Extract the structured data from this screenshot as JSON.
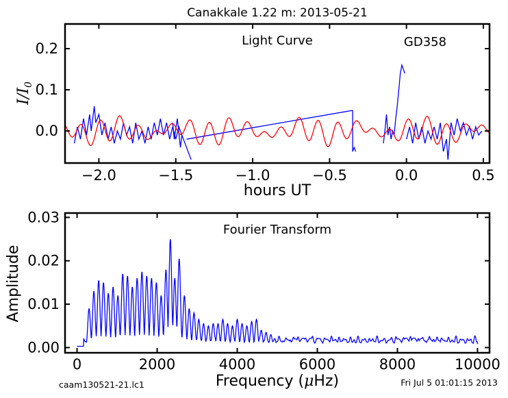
{
  "figure": {
    "title": "Canakkale 1.22 m:  2013-05-21",
    "footer_left": "caam130521-21.lc1",
    "footer_right": "Fri Jul  5 01:01:15 2013"
  },
  "chart_data": [
    {
      "type": "line",
      "panel": "light-curve",
      "annotation": "Light Curve",
      "star_label": "GD358",
      "xlabel": "hours UT",
      "ylabel_parts": {
        "a": "I",
        "slash": "/",
        "b": "I",
        "sub": "0"
      },
      "xlim": [
        -2.22,
        0.54
      ],
      "ylim": [
        -0.078,
        0.26
      ],
      "x_ticks": [
        -2.0,
        -1.5,
        -1.0,
        -0.5,
        0.0,
        0.5
      ],
      "x_tick_labels": [
        "−2.0",
        "−1.5",
        "−1.0",
        "−0.5",
        "0.0",
        "0.5"
      ],
      "y_ticks": [
        0.0,
        0.1,
        0.2
      ],
      "y_tick_labels": [
        "0.0",
        "0.1",
        "0.2"
      ],
      "grid": false,
      "colors": {
        "data": "#0000ff",
        "model": "#ff0000"
      },
      "series": [
        {
          "role": "observed photometry",
          "segments": [
            [
              [
                -2.16,
                -0.03
              ],
              [
                -2.14,
                0.01
              ],
              [
                -2.12,
                -0.02
              ],
              [
                -2.1,
                0.03
              ],
              [
                -2.08,
                -0.01
              ],
              [
                -2.06,
                0.04
              ],
              [
                -2.05,
                0.0
              ],
              [
                -2.03,
                0.06
              ],
              [
                -2.02,
                0.02
              ],
              [
                -2.0,
                0.04
              ],
              [
                -1.98,
                -0.01
              ],
              [
                -1.96,
                0.02
              ],
              [
                -1.94,
                -0.02
              ],
              [
                -1.92,
                0.01
              ],
              [
                -1.9,
                -0.03
              ],
              [
                -1.88,
                0.0
              ],
              [
                -1.86,
                -0.02
              ],
              [
                -1.84,
                0.02
              ],
              [
                -1.82,
                -0.01
              ],
              [
                -1.8,
                0.01
              ],
              [
                -1.78,
                -0.03
              ],
              [
                -1.76,
                0.02
              ],
              [
                -1.74,
                -0.02
              ],
              [
                -1.72,
                0.0
              ],
              [
                -1.7,
                -0.03
              ],
              [
                -1.68,
                0.01
              ],
              [
                -1.66,
                -0.02
              ],
              [
                -1.64,
                0.02
              ],
              [
                -1.62,
                -0.01
              ],
              [
                -1.6,
                0.03
              ],
              [
                -1.58,
                -0.01
              ],
              [
                -1.56,
                0.02
              ],
              [
                -1.54,
                -0.02
              ],
              [
                -1.52,
                0.01
              ],
              [
                -1.5,
                -0.02
              ],
              [
                -1.48,
                0.01
              ],
              [
                -1.46,
                -0.01
              ],
              [
                -1.44,
                -0.03
              ],
              [
                -1.42,
                -0.05
              ],
              [
                -1.4,
                -0.07
              ]
            ],
            [
              [
                -1.52,
                0.02
              ],
              [
                -1.51,
                -0.02
              ],
              [
                -1.49,
                0.03
              ],
              [
                -1.47,
                -0.04
              ],
              [
                -1.46,
                -0.01
              ]
            ],
            [
              [
                -0.35,
                0.05
              ],
              [
                -0.35,
                -0.05
              ],
              [
                -0.34,
                -0.04
              ],
              [
                -0.33,
                -0.05
              ]
            ],
            [
              [
                -0.15,
                -0.03
              ],
              [
                -0.14,
                0.0
              ],
              [
                -0.13,
                0.04
              ],
              [
                -0.12,
                -0.01
              ],
              [
                -0.11,
                0.01
              ],
              [
                -0.1,
                -0.02
              ],
              [
                -0.09,
                0.0
              ],
              [
                -0.08,
                -0.01
              ],
              [
                -0.07,
                0.03
              ],
              [
                -0.06,
                0.06
              ],
              [
                -0.05,
                0.1
              ],
              [
                -0.04,
                0.14
              ],
              [
                -0.03,
                0.16
              ],
              [
                -0.02,
                0.15
              ],
              [
                -0.01,
                0.14
              ]
            ],
            [
              [
                0.0,
                -0.02
              ],
              [
                0.02,
                0.01
              ],
              [
                0.04,
                -0.03
              ],
              [
                0.06,
                0.02
              ],
              [
                0.08,
                -0.02
              ],
              [
                0.1,
                0.01
              ],
              [
                0.12,
                -0.03
              ],
              [
                0.14,
                0.0
              ],
              [
                0.16,
                -0.02
              ],
              [
                0.18,
                0.01
              ],
              [
                0.2,
                -0.02
              ],
              [
                0.22,
                0.02
              ],
              [
                0.24,
                -0.05
              ],
              [
                0.26,
                -0.02
              ],
              [
                0.27,
                -0.07
              ],
              [
                0.29,
                0.02
              ],
              [
                0.31,
                -0.01
              ],
              [
                0.33,
                0.03
              ],
              [
                0.35,
                0.0
              ],
              [
                0.37,
                0.02
              ],
              [
                0.39,
                -0.01
              ],
              [
                0.41,
                0.01
              ],
              [
                0.43,
                -0.02
              ],
              [
                0.45,
                0.01
              ],
              [
                0.47,
                -0.01
              ],
              [
                0.49,
                0.0
              ]
            ]
          ],
          "connector": [
            [
              -1.43,
              -0.02
            ],
            [
              -0.35,
              0.05
            ]
          ]
        },
        {
          "role": "fitted model",
          "x_range": [
            -2.22,
            0.54
          ]
        }
      ]
    },
    {
      "type": "line",
      "panel": "fourier-transform",
      "annotation": "Fourier Transform",
      "xlabel_parts": {
        "pre": "Frequency (",
        "mu": "μ",
        "post": "Hz)"
      },
      "ylabel": "Amplitude",
      "xlim": [
        -300,
        10300
      ],
      "ylim": [
        -0.0012,
        0.031
      ],
      "x_ticks": [
        0,
        2000,
        4000,
        6000,
        8000,
        10000
      ],
      "x_tick_labels": [
        "0",
        "2000",
        "4000",
        "6000",
        "8000",
        "10000"
      ],
      "y_ticks": [
        0.0,
        0.01,
        0.02,
        0.03
      ],
      "y_tick_labels": [
        "0.00",
        "0.01",
        "0.02",
        "0.03"
      ],
      "grid": false,
      "colors": {
        "line": "#0000ff"
      },
      "series": [
        {
          "role": "amplitude spectrum",
          "peaks": [
            [
              300,
              0.009
            ],
            [
              420,
              0.013
            ],
            [
              540,
              0.0155
            ],
            [
              660,
              0.015
            ],
            [
              780,
              0.0125
            ],
            [
              900,
              0.014
            ],
            [
              1020,
              0.012
            ],
            [
              1140,
              0.017
            ],
            [
              1260,
              0.0165
            ],
            [
              1380,
              0.014
            ],
            [
              1500,
              0.016
            ],
            [
              1620,
              0.0175
            ],
            [
              1740,
              0.0165
            ],
            [
              1860,
              0.016
            ],
            [
              1980,
              0.015
            ],
            [
              2100,
              0.012
            ],
            [
              2220,
              0.018
            ],
            [
              2330,
              0.025
            ],
            [
              2440,
              0.016
            ],
            [
              2550,
              0.0205
            ],
            [
              2680,
              0.012
            ],
            [
              2800,
              0.009
            ],
            [
              2920,
              0.008
            ],
            [
              3040,
              0.0065
            ],
            [
              3160,
              0.0055
            ],
            [
              3280,
              0.005
            ],
            [
              3400,
              0.0055
            ],
            [
              3520,
              0.0055
            ],
            [
              3640,
              0.0065
            ],
            [
              3760,
              0.0055
            ],
            [
              3880,
              0.005
            ],
            [
              4000,
              0.0065
            ],
            [
              4120,
              0.0055
            ],
            [
              4240,
              0.005
            ],
            [
              4360,
              0.006
            ],
            [
              4480,
              0.0065
            ],
            [
              4600,
              0.004
            ],
            [
              4720,
              0.0035
            ],
            [
              4840,
              0.003
            ]
          ],
          "x_max": 10000
        }
      ]
    }
  ]
}
